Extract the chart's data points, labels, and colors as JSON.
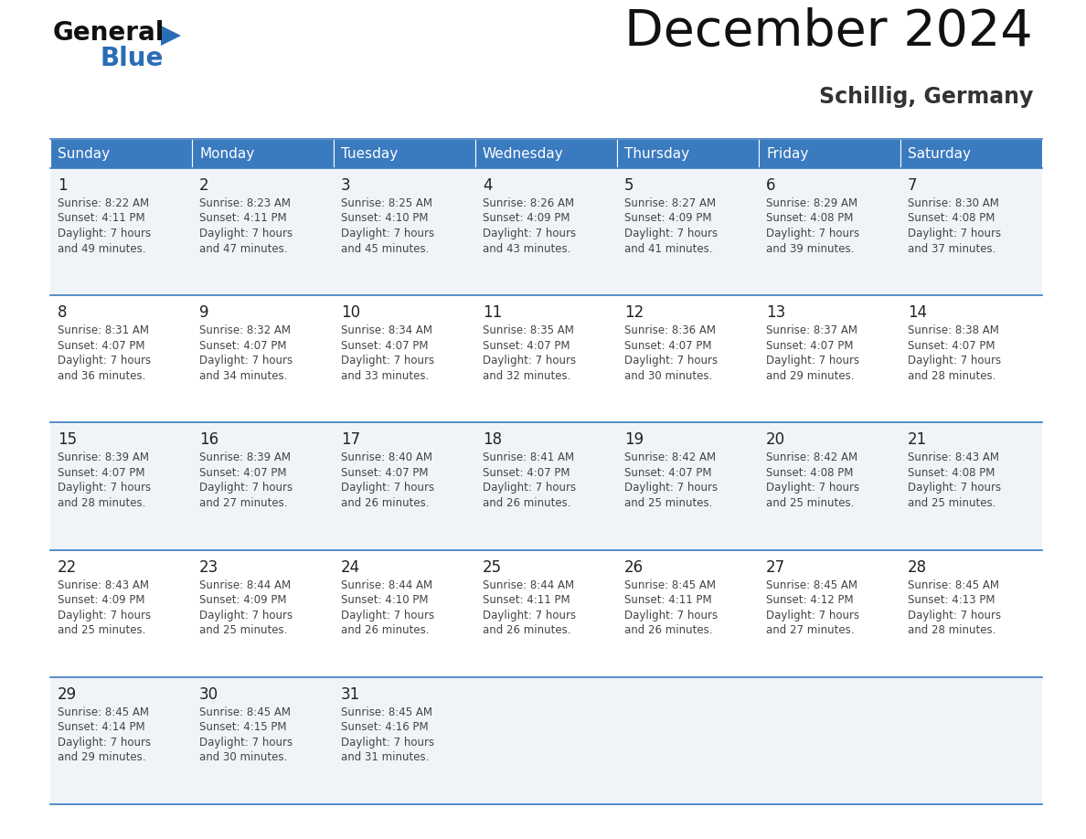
{
  "title": "December 2024",
  "subtitle": "Schillig, Germany",
  "header_color": "#3a7abf",
  "header_text_color": "#ffffff",
  "day_names": [
    "Sunday",
    "Monday",
    "Tuesday",
    "Wednesday",
    "Thursday",
    "Friday",
    "Saturday"
  ],
  "weeks": [
    [
      {
        "day": 1,
        "sunrise": "8:22 AM",
        "sunset": "4:11 PM",
        "daylight": "7 hours and 49 minutes."
      },
      {
        "day": 2,
        "sunrise": "8:23 AM",
        "sunset": "4:11 PM",
        "daylight": "7 hours and 47 minutes."
      },
      {
        "day": 3,
        "sunrise": "8:25 AM",
        "sunset": "4:10 PM",
        "daylight": "7 hours and 45 minutes."
      },
      {
        "day": 4,
        "sunrise": "8:26 AM",
        "sunset": "4:09 PM",
        "daylight": "7 hours and 43 minutes."
      },
      {
        "day": 5,
        "sunrise": "8:27 AM",
        "sunset": "4:09 PM",
        "daylight": "7 hours and 41 minutes."
      },
      {
        "day": 6,
        "sunrise": "8:29 AM",
        "sunset": "4:08 PM",
        "daylight": "7 hours and 39 minutes."
      },
      {
        "day": 7,
        "sunrise": "8:30 AM",
        "sunset": "4:08 PM",
        "daylight": "7 hours and 37 minutes."
      }
    ],
    [
      {
        "day": 8,
        "sunrise": "8:31 AM",
        "sunset": "4:07 PM",
        "daylight": "7 hours and 36 minutes."
      },
      {
        "day": 9,
        "sunrise": "8:32 AM",
        "sunset": "4:07 PM",
        "daylight": "7 hours and 34 minutes."
      },
      {
        "day": 10,
        "sunrise": "8:34 AM",
        "sunset": "4:07 PM",
        "daylight": "7 hours and 33 minutes."
      },
      {
        "day": 11,
        "sunrise": "8:35 AM",
        "sunset": "4:07 PM",
        "daylight": "7 hours and 32 minutes."
      },
      {
        "day": 12,
        "sunrise": "8:36 AM",
        "sunset": "4:07 PM",
        "daylight": "7 hours and 30 minutes."
      },
      {
        "day": 13,
        "sunrise": "8:37 AM",
        "sunset": "4:07 PM",
        "daylight": "7 hours and 29 minutes."
      },
      {
        "day": 14,
        "sunrise": "8:38 AM",
        "sunset": "4:07 PM",
        "daylight": "7 hours and 28 minutes."
      }
    ],
    [
      {
        "day": 15,
        "sunrise": "8:39 AM",
        "sunset": "4:07 PM",
        "daylight": "7 hours and 28 minutes."
      },
      {
        "day": 16,
        "sunrise": "8:39 AM",
        "sunset": "4:07 PM",
        "daylight": "7 hours and 27 minutes."
      },
      {
        "day": 17,
        "sunrise": "8:40 AM",
        "sunset": "4:07 PM",
        "daylight": "7 hours and 26 minutes."
      },
      {
        "day": 18,
        "sunrise": "8:41 AM",
        "sunset": "4:07 PM",
        "daylight": "7 hours and 26 minutes."
      },
      {
        "day": 19,
        "sunrise": "8:42 AM",
        "sunset": "4:07 PM",
        "daylight": "7 hours and 25 minutes."
      },
      {
        "day": 20,
        "sunrise": "8:42 AM",
        "sunset": "4:08 PM",
        "daylight": "7 hours and 25 minutes."
      },
      {
        "day": 21,
        "sunrise": "8:43 AM",
        "sunset": "4:08 PM",
        "daylight": "7 hours and 25 minutes."
      }
    ],
    [
      {
        "day": 22,
        "sunrise": "8:43 AM",
        "sunset": "4:09 PM",
        "daylight": "7 hours and 25 minutes."
      },
      {
        "day": 23,
        "sunrise": "8:44 AM",
        "sunset": "4:09 PM",
        "daylight": "7 hours and 25 minutes."
      },
      {
        "day": 24,
        "sunrise": "8:44 AM",
        "sunset": "4:10 PM",
        "daylight": "7 hours and 26 minutes."
      },
      {
        "day": 25,
        "sunrise": "8:44 AM",
        "sunset": "4:11 PM",
        "daylight": "7 hours and 26 minutes."
      },
      {
        "day": 26,
        "sunrise": "8:45 AM",
        "sunset": "4:11 PM",
        "daylight": "7 hours and 26 minutes."
      },
      {
        "day": 27,
        "sunrise": "8:45 AM",
        "sunset": "4:12 PM",
        "daylight": "7 hours and 27 minutes."
      },
      {
        "day": 28,
        "sunrise": "8:45 AM",
        "sunset": "4:13 PM",
        "daylight": "7 hours and 28 minutes."
      }
    ],
    [
      {
        "day": 29,
        "sunrise": "8:45 AM",
        "sunset": "4:14 PM",
        "daylight": "7 hours and 29 minutes."
      },
      {
        "day": 30,
        "sunrise": "8:45 AM",
        "sunset": "4:15 PM",
        "daylight": "7 hours and 30 minutes."
      },
      {
        "day": 31,
        "sunrise": "8:45 AM",
        "sunset": "4:16 PM",
        "daylight": "7 hours and 31 minutes."
      },
      null,
      null,
      null,
      null
    ]
  ],
  "bg_color": "#ffffff",
  "cell_bg_even": "#f0f4f8",
  "cell_bg_odd": "#ffffff",
  "border_color": "#3a7abf",
  "text_color": "#222222",
  "info_text_color": "#444444",
  "logo_text_color": "#111111",
  "logo_blue_color": "#2a6db5"
}
